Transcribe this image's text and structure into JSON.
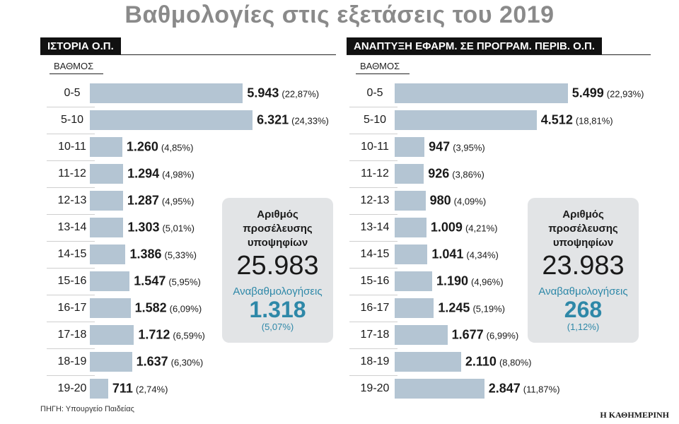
{
  "title": "Βαθμολογίες στις εξετάσεις του 2019",
  "axis_label": "ΒΑΘΜΟΣ",
  "source": "ΠΗΓΗ: Υπουργείο Παιδείας",
  "publisher": "Η ΚΑΘΗΜΕΡΙΝΗ",
  "colors": {
    "bar": "#b4c5d3",
    "accent": "#2e88a8",
    "box": "#e2e4e6"
  },
  "chart_data": [
    {
      "type": "bar",
      "orientation": "horizontal",
      "title": "ΙΣΤΟΡΙΑ Ο.Π.",
      "ylabel": "ΒΑΘΜΟΣ",
      "categories": [
        "0-5",
        "5-10",
        "10-11",
        "11-12",
        "12-13",
        "13-14",
        "14-15",
        "15-16",
        "16-17",
        "17-18",
        "18-19",
        "19-20"
      ],
      "values": [
        5943,
        6321,
        1260,
        1294,
        1287,
        1303,
        1386,
        1547,
        1582,
        1712,
        1637,
        711
      ],
      "value_labels": [
        "5.943",
        "6.321",
        "1.260",
        "1.294",
        "1.287",
        "1.303",
        "1.386",
        "1.547",
        "1.582",
        "1.712",
        "1.637",
        "711"
      ],
      "percent_labels": [
        "(22,87%)",
        "(24,33%)",
        "(4,85%)",
        "(4,98%)",
        "(4,95%)",
        "(5,01%)",
        "(5,33%)",
        "(5,95%)",
        "(6,09%)",
        "(6,59%)",
        "(6,30%)",
        "(2,74%)"
      ],
      "xlim": [
        0,
        7000
      ],
      "info_box": {
        "label": "Αριθμός προσέλευσης υποψηφίων",
        "total": "25.983",
        "rerate_label": "Αναβαθμολογήσεις",
        "rerate_value": "1.318",
        "rerate_pct": "(5,07%)"
      }
    },
    {
      "type": "bar",
      "orientation": "horizontal",
      "title": "ΑΝΑΠΤΥΞΗ ΕΦΑΡΜ. ΣΕ ΠΡΟΓΡΑΜ. ΠΕΡΙΒ. Ο.Π.",
      "ylabel": "ΒΑΘΜΟΣ",
      "categories": [
        "0-5",
        "5-10",
        "10-11",
        "11-12",
        "12-13",
        "13-14",
        "14-15",
        "15-16",
        "16-17",
        "17-18",
        "18-19",
        "19-20"
      ],
      "values": [
        5499,
        4512,
        947,
        926,
        980,
        1009,
        1041,
        1190,
        1245,
        1677,
        2110,
        2847
      ],
      "value_labels": [
        "5.499",
        "4.512",
        "947",
        "926",
        "980",
        "1.009",
        "1.041",
        "1.190",
        "1.245",
        "1.677",
        "2.110",
        "2.847"
      ],
      "percent_labels": [
        "(22,93%)",
        "(18,81%)",
        "(3,95%)",
        "(3,86%)",
        "(4,09%)",
        "(4,21%)",
        "(4,34%)",
        "(4,96%)",
        "(5,19%)",
        "(6,99%)",
        "(8,80%)",
        "(11,87%)"
      ],
      "xlim": [
        0,
        7000
      ],
      "info_box": {
        "label": "Αριθμός προσέλευσης υποψηφίων",
        "total": "23.983",
        "rerate_label": "Αναβαθμολογήσεις",
        "rerate_value": "268",
        "rerate_pct": "(1,12%)"
      }
    }
  ]
}
